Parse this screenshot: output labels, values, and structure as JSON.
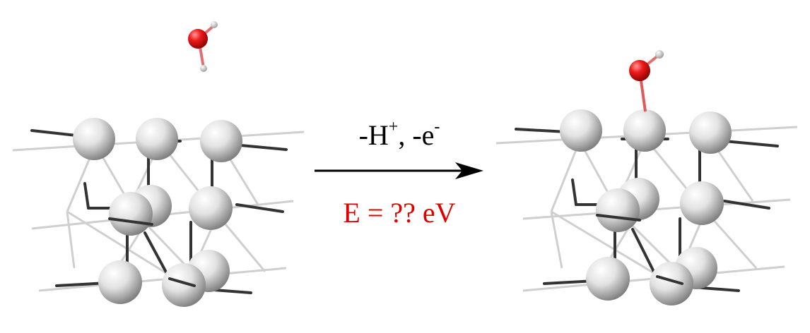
{
  "reaction": {
    "loss_H": "-H",
    "H_charge": "+",
    "sep": ", ",
    "loss_e": "-e",
    "e_charge": "-",
    "energy_label": "E = ?? eV"
  },
  "colors": {
    "energy_text": "#e00000",
    "arrow": "#000000",
    "oxygen": "#e81010",
    "hydrogen": "#f2f2f2",
    "metal_atom": "#dcdcdc",
    "bond_dark": "#333333",
    "bond_light": "#cfcfcf"
  },
  "icons": {
    "left": "water-molecule-above-slab",
    "right": "hydroxyl-adsorbed-on-slab"
  }
}
